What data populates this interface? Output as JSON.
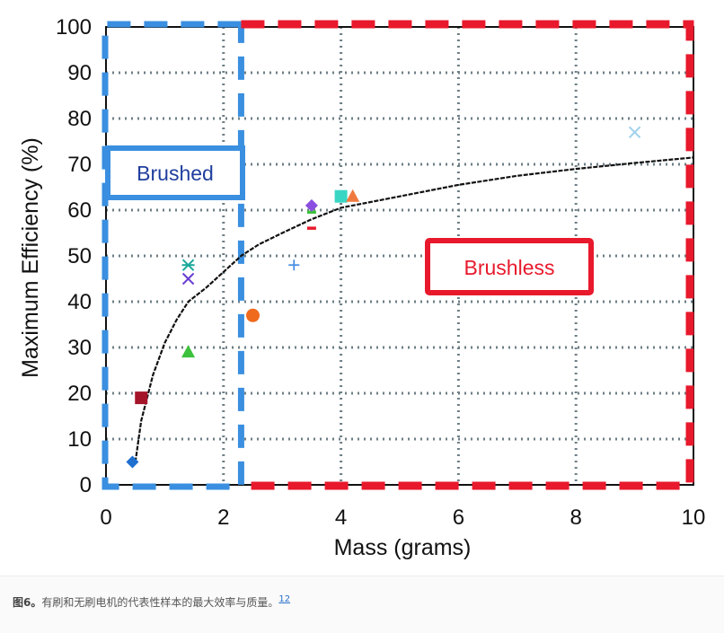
{
  "chart_data": {
    "type": "scatter",
    "title": "",
    "xlabel": "Mass (grams)",
    "ylabel": "Maximum Efficiency (%)",
    "xlim": [
      0,
      10
    ],
    "ylim": [
      0,
      100
    ],
    "xticks": [
      "0",
      "2",
      "4",
      "6",
      "8",
      "10"
    ],
    "xtick_values": [
      0,
      2,
      4,
      6,
      8,
      10
    ],
    "yticks": [
      "0",
      "10",
      "20",
      "30",
      "40",
      "50",
      "60",
      "70",
      "80",
      "90",
      "100"
    ],
    "ytick_values": [
      0,
      10,
      20,
      30,
      40,
      50,
      60,
      70,
      80,
      90,
      100
    ],
    "grid": true,
    "regions": [
      {
        "name": "Brushed",
        "x_range": [
          0,
          2.3
        ],
        "y_range": [
          0,
          100
        ],
        "color": "#3a8fe0",
        "label": "Brushed"
      },
      {
        "name": "Brushless",
        "x_range": [
          2.3,
          10
        ],
        "y_range": [
          0,
          100
        ],
        "color": "#e8192c",
        "label": "Brushless"
      }
    ],
    "points": [
      {
        "x": 0.45,
        "y": 5,
        "marker": "diamond",
        "color": "#1f6fd1"
      },
      {
        "x": 0.6,
        "y": 19,
        "marker": "square",
        "color": "#a5152a"
      },
      {
        "x": 1.4,
        "y": 29,
        "marker": "triangle",
        "color": "#3cc23c"
      },
      {
        "x": 1.4,
        "y": 45,
        "marker": "x",
        "color": "#6a3fd1"
      },
      {
        "x": 1.4,
        "y": 48,
        "marker": "star",
        "color": "#1aa89a"
      },
      {
        "x": 2.5,
        "y": 37,
        "marker": "circle",
        "color": "#f06a1e"
      },
      {
        "x": 3.2,
        "y": 48,
        "marker": "plus",
        "color": "#4a90e2"
      },
      {
        "x": 3.5,
        "y": 56,
        "marker": "dash",
        "color": "#e8192c"
      },
      {
        "x": 3.5,
        "y": 59.5,
        "marker": "dash",
        "color": "#3cc23c"
      },
      {
        "x": 3.5,
        "y": 61,
        "marker": "diamond",
        "color": "#8a4fe0"
      },
      {
        "x": 4.0,
        "y": 63,
        "marker": "square",
        "color": "#3ad6c4"
      },
      {
        "x": 4.2,
        "y": 63,
        "marker": "triangle",
        "color": "#f07a3e"
      },
      {
        "x": 9.0,
        "y": 77,
        "marker": "x",
        "color": "#9fd0ec"
      }
    ],
    "trend": {
      "x": [
        0.5,
        0.6,
        0.8,
        1.0,
        1.2,
        1.4,
        1.7,
        2.0,
        2.3,
        2.6,
        3.0,
        3.5,
        4.0,
        5.0,
        6.0,
        7.0,
        8.0,
        9.0,
        10.0
      ],
      "y": [
        5,
        14,
        24,
        31,
        36,
        40,
        43,
        46.5,
        50,
        52.5,
        55,
        58,
        60.5,
        63,
        65.5,
        67.5,
        69,
        70.3,
        71.5
      ],
      "color": "#111111"
    }
  },
  "caption": {
    "figure_label": "图6。",
    "text": "有刷和无刷电机的代表性样本的最大效率与质量。",
    "ref": "12"
  }
}
